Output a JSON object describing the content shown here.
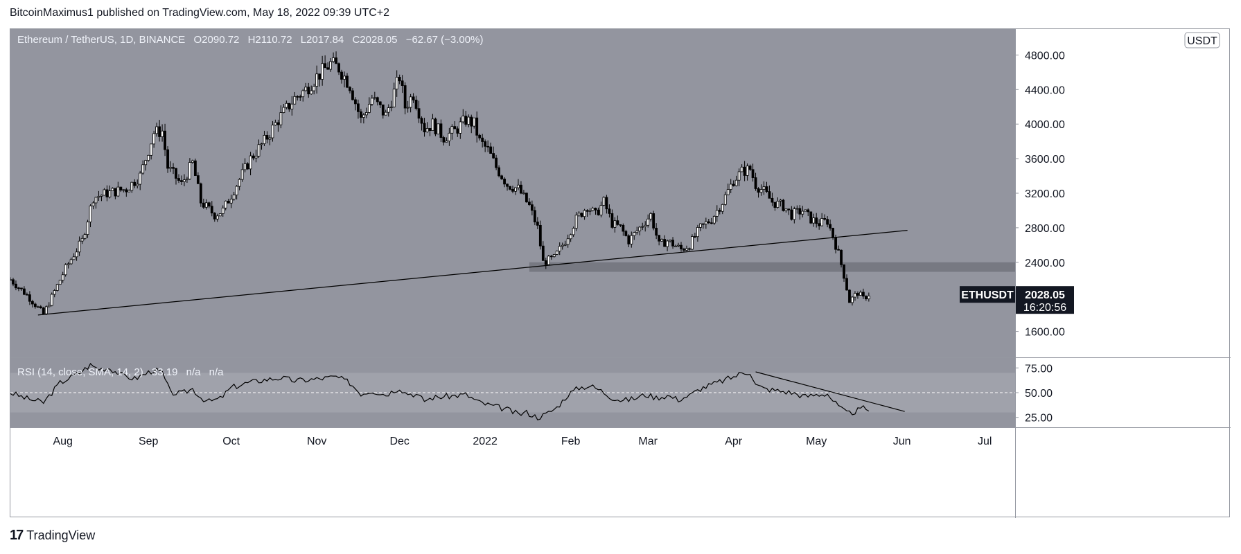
{
  "header": {
    "publisher": "BitcoinMaximus1 published on TradingView.com, May 18, 2022 09:39 UTC+2"
  },
  "footer": {
    "brand": "TradingView",
    "logo": "tradingview-logo-icon"
  },
  "colors": {
    "bg": "#93959f",
    "rsi_band": "#a0a2ab",
    "line": "#000000",
    "zone": "#6b6d76",
    "badge": "#131722"
  },
  "legend": {
    "symbol": "Ethereum / TetherUS, 1D, BINANCE",
    "o_label": "O",
    "o": "2090.72",
    "h_label": "H",
    "h": "2110.72",
    "l_label": "L",
    "l": "2017.84",
    "c_label": "C",
    "c": "2028.05",
    "change": "−62.67 (−3.00%)"
  },
  "price_axis": {
    "currency": "USDT",
    "ticks": [
      "4800.00",
      "4400.00",
      "4000.00",
      "3600.00",
      "3200.00",
      "2800.00",
      "2400.00",
      "1600.00"
    ],
    "ticker": "ETHUSDT",
    "last_price": "2028.05",
    "countdown": "16:20:56"
  },
  "rsi_legend": {
    "title": "RSI (14, close, SMA, 14, 2)",
    "value": "33.19",
    "na1": "n/a",
    "na2": "n/a"
  },
  "rsi_axis": {
    "ticks": [
      "75.00",
      "50.00",
      "25.00"
    ]
  },
  "time_axis": {
    "labels": [
      "Aug",
      "Sep",
      "Oct",
      "Nov",
      "Dec",
      "2022",
      "Feb",
      "Mar",
      "Apr",
      "May",
      "Jun",
      "Jul"
    ]
  },
  "chart_data": {
    "type": "candlestick",
    "title": "Ethereum / TetherUS, 1D, BINANCE",
    "ylabel": "USDT",
    "ylim": [
      1300,
      5100
    ],
    "rsi_ylim": [
      15,
      85
    ],
    "x_range_days": [
      0,
      364
    ],
    "x_start": "2021-07-13",
    "month_ticks": [
      {
        "label": "Aug",
        "day": 19
      },
      {
        "label": "Sep",
        "day": 50
      },
      {
        "label": "Oct",
        "day": 80
      },
      {
        "label": "Nov",
        "day": 111
      },
      {
        "label": "Dec",
        "day": 141
      },
      {
        "label": "2022",
        "day": 172
      },
      {
        "label": "Feb",
        "day": 203
      },
      {
        "label": "Mar",
        "day": 231
      },
      {
        "label": "Apr",
        "day": 262
      },
      {
        "label": "May",
        "day": 292
      },
      {
        "label": "Jun",
        "day": 323
      },
      {
        "label": "Jul",
        "day": 353
      }
    ],
    "close_anchors": [
      [
        0,
        2200
      ],
      [
        6,
        2020
      ],
      [
        12,
        1800
      ],
      [
        20,
        2330
      ],
      [
        26,
        2650
      ],
      [
        30,
        3150
      ],
      [
        35,
        3200
      ],
      [
        42,
        3250
      ],
      [
        47,
        3400
      ],
      [
        52,
        3900
      ],
      [
        55,
        3920
      ],
      [
        57,
        3500
      ],
      [
        62,
        3300
      ],
      [
        66,
        3550
      ],
      [
        69,
        3100
      ],
      [
        74,
        2950
      ],
      [
        77,
        3000
      ],
      [
        82,
        3300
      ],
      [
        87,
        3600
      ],
      [
        92,
        3800
      ],
      [
        97,
        4050
      ],
      [
        103,
        4300
      ],
      [
        107,
        4400
      ],
      [
        111,
        4550
      ],
      [
        116,
        4700
      ],
      [
        119,
        4650
      ],
      [
        123,
        4450
      ],
      [
        127,
        4050
      ],
      [
        131,
        4300
      ],
      [
        136,
        4100
      ],
      [
        141,
        4550
      ],
      [
        143,
        4200
      ],
      [
        146,
        4350
      ],
      [
        150,
        3950
      ],
      [
        153,
        4000
      ],
      [
        157,
        3850
      ],
      [
        161,
        3920
      ],
      [
        165,
        4050
      ],
      [
        168,
        4000
      ],
      [
        170,
        3800
      ],
      [
        173,
        3700
      ],
      [
        176,
        3500
      ],
      [
        180,
        3300
      ],
      [
        184,
        3250
      ],
      [
        188,
        3050
      ],
      [
        191,
        2800
      ],
      [
        193,
        2400
      ],
      [
        197,
        2450
      ],
      [
        201,
        2650
      ],
      [
        205,
        2900
      ],
      [
        209,
        3050
      ],
      [
        212,
        2950
      ],
      [
        215,
        3100
      ],
      [
        218,
        2850
      ],
      [
        221,
        2800
      ],
      [
        224,
        2650
      ],
      [
        228,
        2800
      ],
      [
        232,
        2950
      ],
      [
        235,
        2600
      ],
      [
        238,
        2650
      ],
      [
        243,
        2550
      ],
      [
        246,
        2600
      ],
      [
        250,
        2800
      ],
      [
        254,
        2900
      ],
      [
        258,
        3100
      ],
      [
        262,
        3350
      ],
      [
        265,
        3450
      ],
      [
        268,
        3480
      ],
      [
        270,
        3300
      ],
      [
        273,
        3220
      ],
      [
        276,
        3100
      ],
      [
        280,
        3050
      ],
      [
        283,
        2950
      ],
      [
        287,
        3000
      ],
      [
        290,
        2900
      ],
      [
        293,
        2850
      ],
      [
        296,
        2880
      ],
      [
        298,
        2700
      ],
      [
        300,
        2500
      ],
      [
        302,
        2250
      ],
      [
        304,
        1950
      ],
      [
        307,
        2050
      ],
      [
        309,
        1980
      ],
      [
        311,
        2030
      ]
    ],
    "trendlines": [
      {
        "name": "long-term ascending support",
        "from": [
          10,
          1790
        ],
        "to": [
          325,
          2770
        ]
      }
    ],
    "horizontal_zone": {
      "name": "support-zone",
      "from_day": 188,
      "to_day": 364,
      "low": 2290,
      "high": 2400
    },
    "rsi": {
      "period": 14,
      "last": 33.19,
      "anchors": [
        [
          0,
          50
        ],
        [
          6,
          44
        ],
        [
          12,
          40
        ],
        [
          18,
          60
        ],
        [
          25,
          70
        ],
        [
          29,
          78
        ],
        [
          32,
          74
        ],
        [
          36,
          75
        ],
        [
          40,
          68
        ],
        [
          45,
          64
        ],
        [
          52,
          73
        ],
        [
          55,
          70
        ],
        [
          58,
          50
        ],
        [
          62,
          49
        ],
        [
          66,
          54
        ],
        [
          69,
          45
        ],
        [
          72,
          41
        ],
        [
          76,
          44
        ],
        [
          80,
          55
        ],
        [
          86,
          60
        ],
        [
          92,
          63
        ],
        [
          98,
          65
        ],
        [
          103,
          62
        ],
        [
          108,
          63
        ],
        [
          112,
          64
        ],
        [
          118,
          66
        ],
        [
          123,
          60
        ],
        [
          127,
          49
        ],
        [
          131,
          52
        ],
        [
          136,
          48
        ],
        [
          141,
          55
        ],
        [
          143,
          50
        ],
        [
          147,
          48
        ],
        [
          150,
          42
        ],
        [
          153,
          45
        ],
        [
          157,
          46
        ],
        [
          161,
          47
        ],
        [
          165,
          48
        ],
        [
          170,
          40
        ],
        [
          174,
          37
        ],
        [
          180,
          33
        ],
        [
          184,
          28
        ],
        [
          187,
          30
        ],
        [
          191,
          25
        ],
        [
          194,
          28
        ],
        [
          198,
          35
        ],
        [
          202,
          48
        ],
        [
          206,
          55
        ],
        [
          210,
          57
        ],
        [
          214,
          52
        ],
        [
          218,
          45
        ],
        [
          222,
          42
        ],
        [
          226,
          44
        ],
        [
          230,
          48
        ],
        [
          234,
          45
        ],
        [
          238,
          47
        ],
        [
          242,
          43
        ],
        [
          246,
          47
        ],
        [
          250,
          54
        ],
        [
          254,
          58
        ],
        [
          258,
          62
        ],
        [
          262,
          66
        ],
        [
          265,
          70
        ],
        [
          268,
          71
        ],
        [
          270,
          58
        ],
        [
          273,
          54
        ],
        [
          278,
          52
        ],
        [
          283,
          50
        ],
        [
          288,
          46
        ],
        [
          292,
          48
        ],
        [
          296,
          49
        ],
        [
          298,
          42
        ],
        [
          300,
          36
        ],
        [
          302,
          31
        ],
        [
          304,
          29
        ],
        [
          307,
          32
        ],
        [
          309,
          34
        ],
        [
          311,
          33
        ]
      ],
      "trendline": {
        "from": [
          270,
          71
        ],
        "to": [
          324,
          31
        ]
      },
      "levels": {
        "upper": 70,
        "middle": 50,
        "lower": 30
      }
    }
  }
}
